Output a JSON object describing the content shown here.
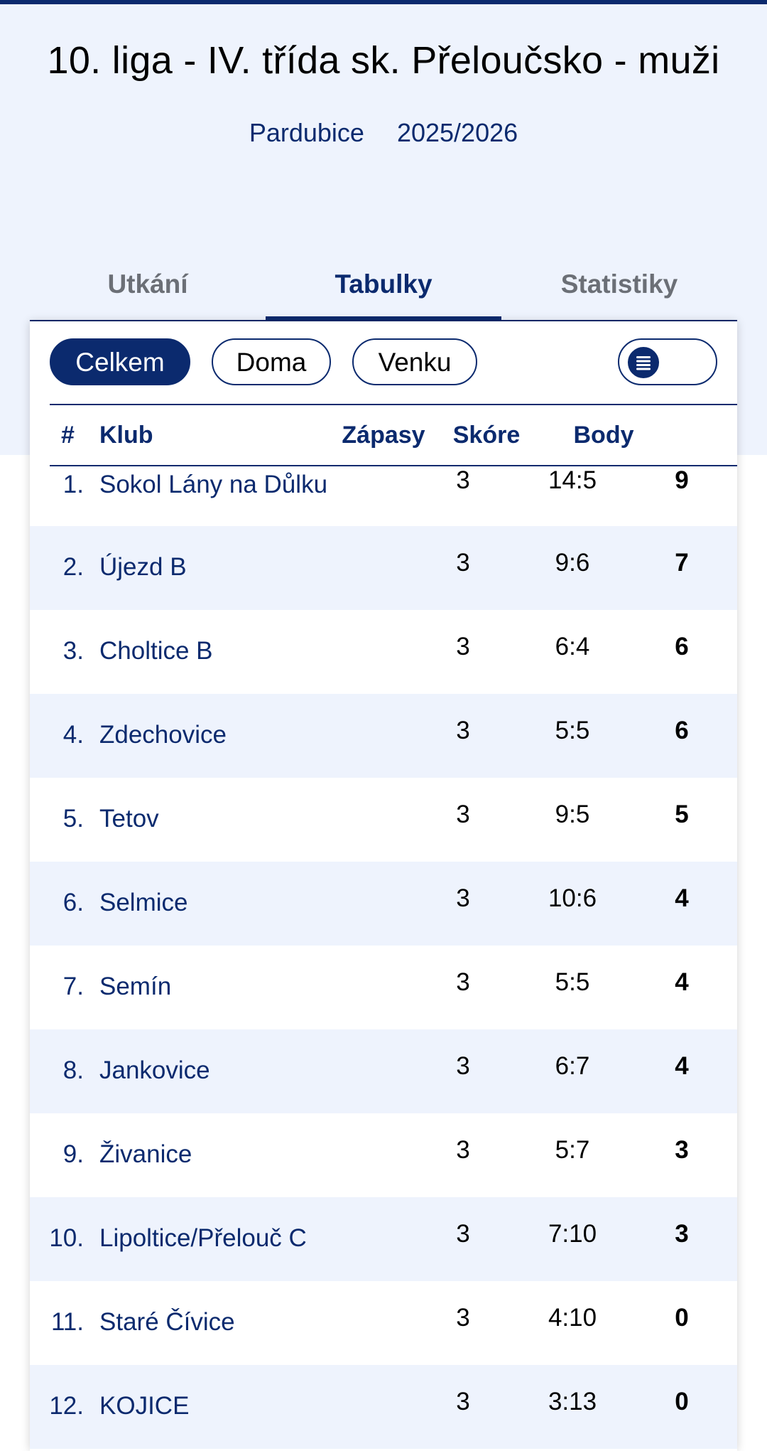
{
  "header": {
    "title": "10. liga - IV. třída sk. Přeloučsko - muži",
    "region": "Pardubice",
    "season": "2025/2026"
  },
  "tabs": [
    {
      "label": "Utkání",
      "active": false
    },
    {
      "label": "Tabulky",
      "active": true
    },
    {
      "label": "Statistiky",
      "active": false
    }
  ],
  "filters": [
    {
      "label": "Celkem",
      "active": true
    },
    {
      "label": "Doma",
      "active": false
    },
    {
      "label": "Venku",
      "active": false
    }
  ],
  "toggle": {
    "icon": "list-icon",
    "on": false
  },
  "table": {
    "headers": {
      "rank": "#",
      "club": "Klub",
      "matches": "Zápasy",
      "score": "Skóre",
      "points": "Body"
    },
    "rows": [
      {
        "rank": "1.",
        "club": "Sokol Lány na Důlku",
        "matches": "3",
        "score": "14:5",
        "points": "9"
      },
      {
        "rank": "2.",
        "club": "Újezd B",
        "matches": "3",
        "score": "9:6",
        "points": "7"
      },
      {
        "rank": "3.",
        "club": "Choltice B",
        "matches": "3",
        "score": "6:4",
        "points": "6"
      },
      {
        "rank": "4.",
        "club": "Zdechovice",
        "matches": "3",
        "score": "5:5",
        "points": "6"
      },
      {
        "rank": "5.",
        "club": "Tetov",
        "matches": "3",
        "score": "9:5",
        "points": "5"
      },
      {
        "rank": "6.",
        "club": "Selmice",
        "matches": "3",
        "score": "10:6",
        "points": "4"
      },
      {
        "rank": "7.",
        "club": "Semín",
        "matches": "3",
        "score": "5:5",
        "points": "4"
      },
      {
        "rank": "8.",
        "club": "Jankovice",
        "matches": "3",
        "score": "6:7",
        "points": "4"
      },
      {
        "rank": "9.",
        "club": "Živanice",
        "matches": "3",
        "score": "5:7",
        "points": "3"
      },
      {
        "rank": "10.",
        "club": "Lipoltice/Přelouč C",
        "matches": "3",
        "score": "7:10",
        "points": "3"
      },
      {
        "rank": "11.",
        "club": "Staré Čívice",
        "matches": "3",
        "score": "4:10",
        "points": "0"
      },
      {
        "rank": "12.",
        "club": "KOJICE",
        "matches": "3",
        "score": "3:13",
        "points": "0"
      }
    ]
  },
  "colors": {
    "brand": "#0b2a6e",
    "hero_bg": "#eef3fd",
    "row_alt": "#eef3fd"
  }
}
